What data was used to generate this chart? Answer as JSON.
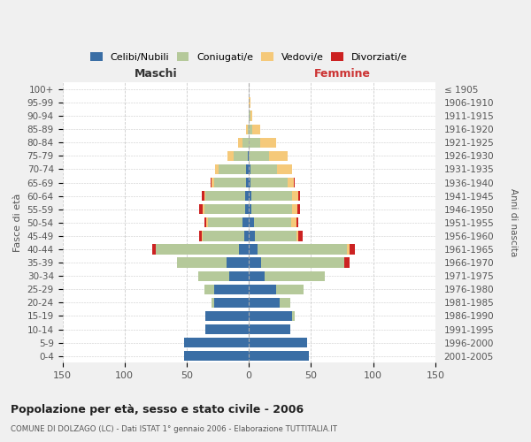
{
  "age_groups": [
    "0-4",
    "5-9",
    "10-14",
    "15-19",
    "20-24",
    "25-29",
    "30-34",
    "35-39",
    "40-44",
    "45-49",
    "50-54",
    "55-59",
    "60-64",
    "65-69",
    "70-74",
    "75-79",
    "80-84",
    "85-89",
    "90-94",
    "95-99",
    "100+"
  ],
  "birth_years": [
    "2001-2005",
    "1996-2000",
    "1991-1995",
    "1986-1990",
    "1981-1985",
    "1976-1980",
    "1971-1975",
    "1966-1970",
    "1961-1965",
    "1956-1960",
    "1951-1955",
    "1946-1950",
    "1941-1945",
    "1936-1940",
    "1931-1935",
    "1926-1930",
    "1921-1925",
    "1916-1920",
    "1911-1915",
    "1906-1910",
    "≤ 1905"
  ],
  "colors": {
    "celibi": "#3a6ea5",
    "coniugati": "#b5c99a",
    "vedovi": "#f5c97a",
    "divorziati": "#cc2222"
  },
  "males": {
    "celibi": [
      52,
      52,
      35,
      35,
      28,
      28,
      16,
      18,
      8,
      4,
      5,
      3,
      3,
      2,
      2,
      1,
      0,
      0,
      0,
      0,
      0
    ],
    "coniugati": [
      0,
      0,
      0,
      0,
      2,
      8,
      25,
      40,
      67,
      33,
      28,
      33,
      32,
      26,
      22,
      11,
      5,
      1,
      0,
      0,
      0
    ],
    "vedovi": [
      0,
      0,
      0,
      0,
      0,
      0,
      0,
      0,
      0,
      1,
      1,
      1,
      1,
      2,
      3,
      5,
      4,
      1,
      0,
      0,
      0
    ],
    "divorziati": [
      0,
      0,
      0,
      0,
      0,
      0,
      0,
      0,
      3,
      2,
      2,
      3,
      2,
      1,
      0,
      0,
      0,
      0,
      0,
      0,
      0
    ]
  },
  "females": {
    "celibi": [
      48,
      47,
      33,
      35,
      25,
      22,
      13,
      10,
      7,
      5,
      4,
      2,
      2,
      1,
      1,
      0,
      0,
      0,
      0,
      0,
      0
    ],
    "coniugati": [
      0,
      0,
      0,
      2,
      8,
      22,
      48,
      67,
      72,
      33,
      30,
      33,
      33,
      30,
      22,
      16,
      9,
      3,
      1,
      0,
      0
    ],
    "vedovi": [
      0,
      0,
      0,
      0,
      0,
      0,
      0,
      0,
      2,
      2,
      4,
      4,
      5,
      5,
      12,
      15,
      13,
      6,
      2,
      1,
      0
    ],
    "divorziati": [
      0,
      0,
      0,
      0,
      0,
      0,
      0,
      4,
      4,
      3,
      2,
      2,
      1,
      1,
      0,
      0,
      0,
      0,
      0,
      0,
      0
    ]
  },
  "title": "Popolazione per età, sesso e stato civile - 2006",
  "subtitle": "COMUNE DI DOLZAGO (LC) - Dati ISTAT 1° gennaio 2006 - Elaborazione TUTTITALIA.IT",
  "xlabel_left": "Maschi",
  "xlabel_right": "Femmine",
  "ylabel_left": "Fasce di età",
  "ylabel_right": "Anni di nascita",
  "xlim": 150,
  "bg_color": "#f0f0f0",
  "plot_bg_color": "#ffffff",
  "legend_labels": [
    "Celibi/Nubili",
    "Coniugati/e",
    "Vedovi/e",
    "Divorziati/e"
  ]
}
